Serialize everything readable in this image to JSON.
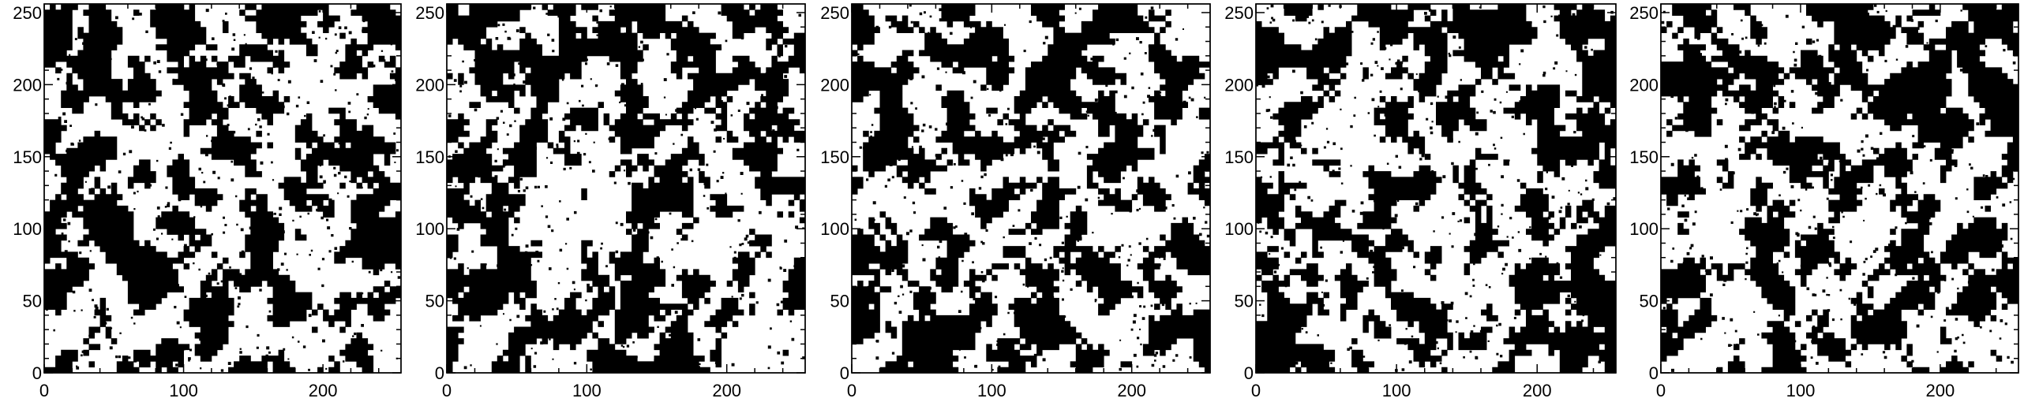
{
  "chart_data": [
    {
      "type": "scatter",
      "title": "",
      "xlabel": "",
      "ylabel": "",
      "xlim": [
        0,
        256
      ],
      "ylim": [
        0,
        256
      ],
      "xticks": [
        0,
        100,
        200
      ],
      "yticks": [
        0,
        50,
        100,
        150,
        200,
        250
      ],
      "xtick_labels": [
        "0",
        "100",
        "200"
      ],
      "ytick_labels": [
        "0",
        "50",
        "100",
        "150",
        "200",
        "250"
      ],
      "grid": false,
      "marker_color": "#000000",
      "occupied_fraction": 0.45,
      "seed": 11
    },
    {
      "type": "scatter",
      "title": "",
      "xlabel": "",
      "ylabel": "",
      "xlim": [
        0,
        256
      ],
      "ylim": [
        0,
        256
      ],
      "xticks": [
        0,
        100,
        200
      ],
      "yticks": [
        0,
        50,
        100,
        150,
        200,
        250
      ],
      "xtick_labels": [
        "0",
        "100",
        "200"
      ],
      "ytick_labels": [
        "0",
        "50",
        "100",
        "150",
        "200",
        "250"
      ],
      "grid": false,
      "marker_color": "#000000",
      "occupied_fraction": 0.45,
      "seed": 23
    },
    {
      "type": "scatter",
      "title": "",
      "xlabel": "",
      "ylabel": "",
      "xlim": [
        0,
        256
      ],
      "ylim": [
        0,
        256
      ],
      "xticks": [
        0,
        100,
        200
      ],
      "yticks": [
        0,
        50,
        100,
        150,
        200,
        250
      ],
      "xtick_labels": [
        "0",
        "100",
        "200"
      ],
      "ytick_labels": [
        "0",
        "50",
        "100",
        "150",
        "200",
        "250"
      ],
      "grid": false,
      "marker_color": "#000000",
      "occupied_fraction": 0.45,
      "seed": 37
    },
    {
      "type": "scatter",
      "title": "",
      "xlabel": "",
      "ylabel": "",
      "xlim": [
        0,
        256
      ],
      "ylim": [
        0,
        256
      ],
      "xticks": [
        0,
        100,
        200
      ],
      "yticks": [
        0,
        50,
        100,
        150,
        200,
        250
      ],
      "xtick_labels": [
        "0",
        "100",
        "200"
      ],
      "ytick_labels": [
        "0",
        "50",
        "100",
        "150",
        "200",
        "250"
      ],
      "grid": false,
      "marker_color": "#000000",
      "occupied_fraction": 0.45,
      "seed": 41
    },
    {
      "type": "scatter",
      "title": "",
      "xlabel": "",
      "ylabel": "",
      "xlim": [
        0,
        256
      ],
      "ylim": [
        0,
        256
      ],
      "xticks": [
        0,
        100,
        200
      ],
      "yticks": [
        0,
        50,
        100,
        150,
        200,
        250
      ],
      "xtick_labels": [
        "0",
        "100",
        "200"
      ],
      "ytick_labels": [
        "0",
        "50",
        "100",
        "150",
        "200",
        "250"
      ],
      "grid": false,
      "marker_color": "#000000",
      "occupied_fraction": 0.45,
      "seed": 53
    }
  ]
}
